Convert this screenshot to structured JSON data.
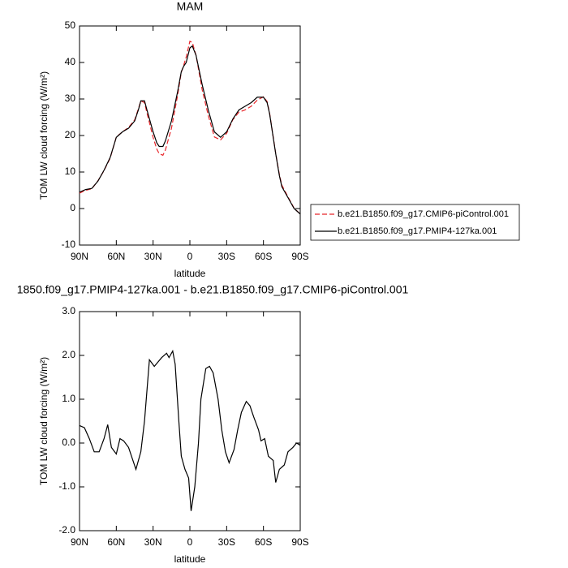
{
  "chart_data": [
    {
      "type": "line",
      "title": "MAM",
      "xlabel": "latitude",
      "ylabel": "TOM LW cloud forcing (W/m²)",
      "x": [
        90,
        85,
        80,
        75,
        70,
        65,
        60,
        55,
        50,
        45,
        42,
        40,
        37,
        35,
        30,
        27,
        25,
        22,
        20,
        15,
        10,
        7,
        5,
        3,
        0,
        -2,
        -5,
        -10,
        -15,
        -20,
        -25,
        -30,
        -35,
        -40,
        -45,
        -50,
        -55,
        -60,
        -63,
        -65,
        -70,
        -73,
        -75,
        -80,
        -85,
        -90
      ],
      "series": [
        {
          "name": "b.e21.B1850.f09_g17.CMIP6-piControl.001",
          "color": "#e8262a",
          "style": "dashed",
          "values": [
            4.2,
            5.0,
            5.4,
            7.6,
            10.4,
            13.8,
            19.6,
            21.0,
            22.2,
            24.3,
            27.3,
            29.5,
            29.0,
            26.2,
            19.5,
            16.3,
            15.0,
            14.6,
            16.0,
            22.0,
            31.0,
            37.3,
            39.3,
            41.5,
            45.8,
            45.5,
            42.0,
            32.6,
            25.5,
            19.6,
            18.8,
            20.6,
            24.3,
            26.4,
            27.0,
            28.0,
            29.7,
            30.6,
            29.3,
            26.2,
            15.1,
            9.3,
            6.4,
            3.2,
            0.1,
            -1.5
          ]
        },
        {
          "name": "b.e21.B1850.f09_g17.PMIP4-127ka.001",
          "color": "#000000",
          "style": "solid",
          "values": [
            4.5,
            5.2,
            5.5,
            7.5,
            10.5,
            14.0,
            19.5,
            21.0,
            22.0,
            24.0,
            27.0,
            29.5,
            29.5,
            27.0,
            21.0,
            18.0,
            17.0,
            17.0,
            18.5,
            24.0,
            32.0,
            37.5,
            39.0,
            40.0,
            44.0,
            44.5,
            42.0,
            34.0,
            27.0,
            21.0,
            19.5,
            21.0,
            24.5,
            27.0,
            28.0,
            29.0,
            30.5,
            30.5,
            29.0,
            26.0,
            15.0,
            9.0,
            6.0,
            3.0,
            0.0,
            -1.5
          ]
        }
      ],
      "xlim": [
        90,
        -90
      ],
      "xticks": [
        {
          "value": 90,
          "label": "90N"
        },
        {
          "value": 60,
          "label": "60N"
        },
        {
          "value": 30,
          "label": "30N"
        },
        0,
        {
          "value": -30,
          "label": "30S"
        },
        {
          "value": -60,
          "label": "60S"
        },
        {
          "value": -90,
          "label": "90S"
        }
      ],
      "ylim": [
        -10,
        50
      ],
      "yticks": [
        -10,
        0,
        10,
        20,
        30,
        40,
        50
      ],
      "legend": "right"
    },
    {
      "type": "line",
      "title": "1850.f09_g17.PMIP4-127ka.001 - b.e21.B1850.f09_g17.CMIP6-piControl.001",
      "xlabel": "latitude",
      "ylabel": "TOM LW cloud forcing (W/m²)",
      "x": [
        90,
        86,
        82,
        78,
        74,
        70,
        67,
        64,
        60,
        57,
        54,
        50,
        47,
        44,
        40,
        37,
        33,
        29,
        26,
        23,
        19,
        17,
        14,
        12,
        9,
        7,
        4,
        1,
        -1,
        -4,
        -7,
        -9,
        -13,
        -16,
        -19,
        -23,
        -26,
        -29,
        -32,
        -36,
        -39,
        -42,
        -46,
        -49,
        -52,
        -56,
        -58,
        -61,
        -64,
        -68,
        -70,
        -73,
        -77,
        -80,
        -84,
        -87,
        -90
      ],
      "series": [
        {
          "color": "#000000",
          "style": "solid",
          "values": [
            0.4,
            0.35,
            0.1,
            -0.2,
            -0.2,
            0.1,
            0.42,
            -0.1,
            -0.25,
            0.1,
            0.05,
            -0.1,
            -0.35,
            -0.6,
            -0.2,
            0.5,
            1.9,
            1.75,
            1.85,
            1.95,
            2.05,
            1.95,
            2.1,
            1.8,
            0.5,
            -0.3,
            -0.6,
            -0.8,
            -1.55,
            -1.0,
            0.0,
            1.0,
            1.7,
            1.75,
            1.6,
            1.0,
            0.3,
            -0.2,
            -0.45,
            -0.15,
            0.3,
            0.7,
            0.95,
            0.85,
            0.6,
            0.3,
            0.05,
            0.1,
            -0.3,
            -0.4,
            -0.9,
            -0.6,
            -0.5,
            -0.2,
            -0.1,
            0.0,
            -0.05
          ]
        }
      ],
      "xlim": [
        90,
        -90
      ],
      "xticks": [
        {
          "value": 90,
          "label": "90N"
        },
        {
          "value": 60,
          "label": "60N"
        },
        {
          "value": 30,
          "label": "30N"
        },
        0,
        {
          "value": -30,
          "label": "30S"
        },
        {
          "value": -60,
          "label": "60S"
        },
        {
          "value": -90,
          "label": "90S"
        }
      ],
      "ylim": [
        -2,
        3
      ],
      "yticks": [
        {
          "value": -2,
          "label": "-2.0"
        },
        {
          "value": -1,
          "label": "-1.0"
        },
        {
          "value": 0,
          "label": "0.0"
        },
        {
          "value": 1,
          "label": "1.0"
        },
        {
          "value": 2,
          "label": "2.0"
        },
        {
          "value": 3,
          "label": "3.0"
        }
      ]
    }
  ]
}
